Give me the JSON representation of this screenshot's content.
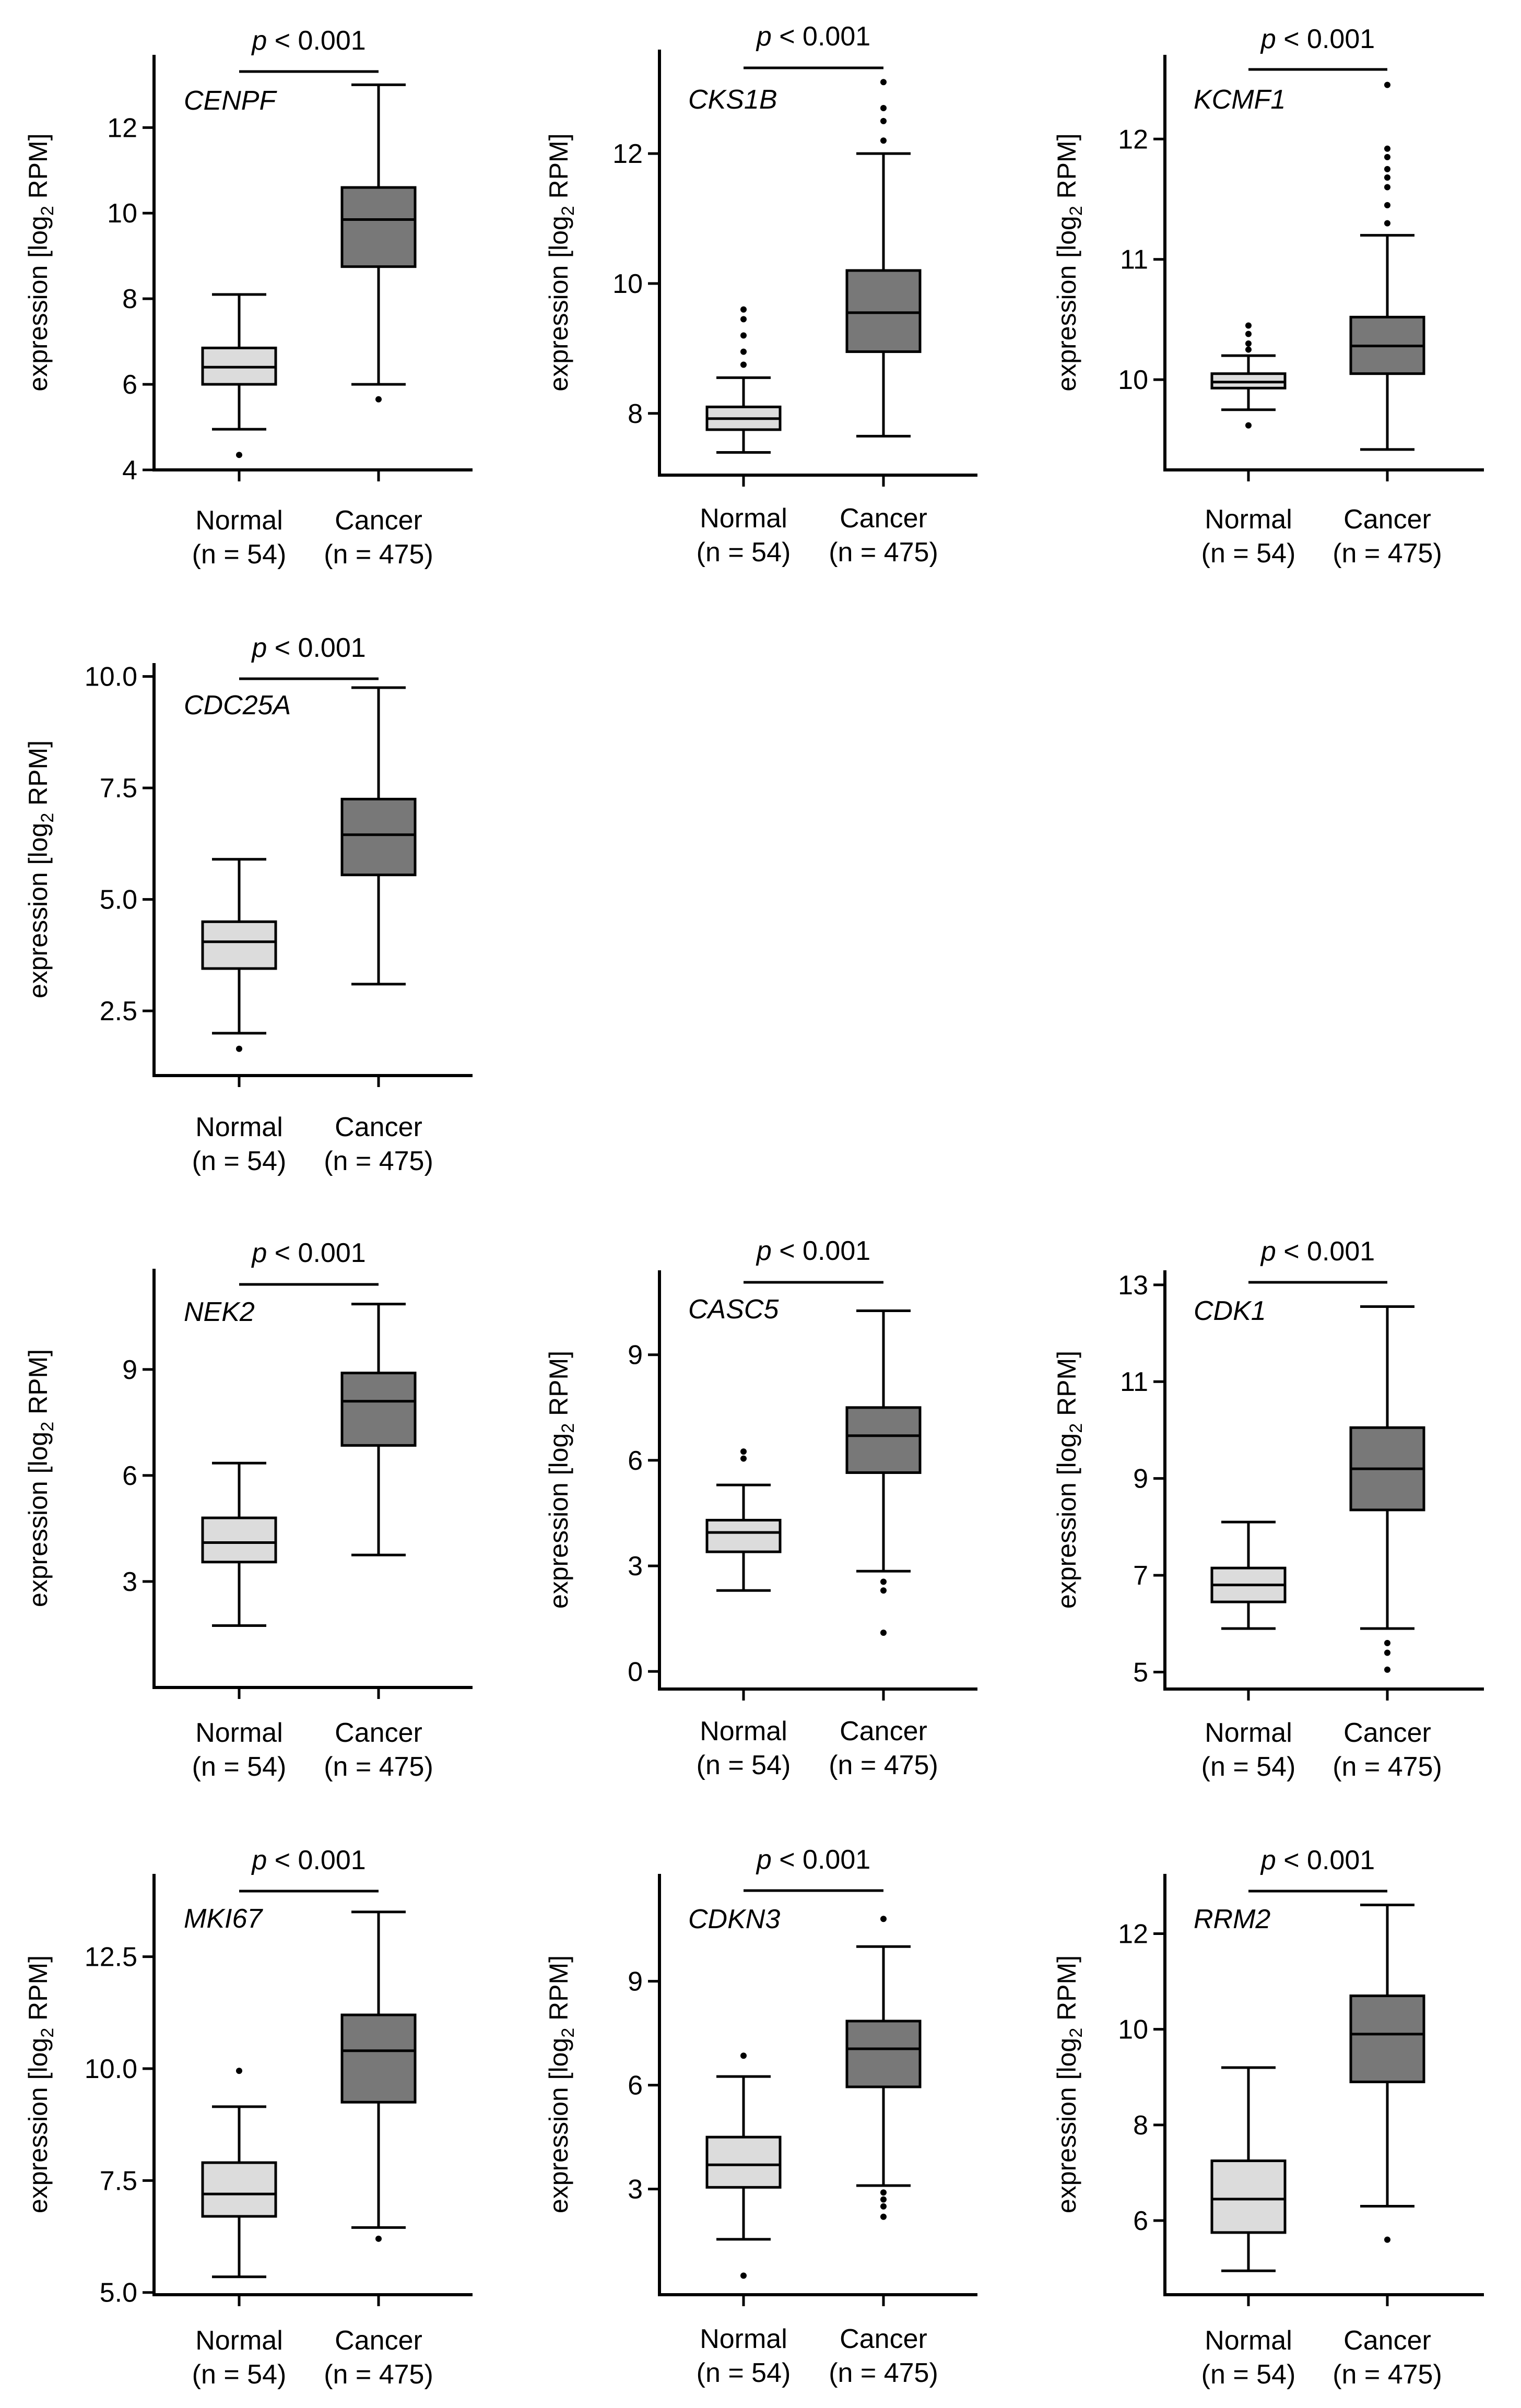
{
  "figure": {
    "ylabel_prefix": "expression [log",
    "ylabel_sub": "2",
    "ylabel_suffix": " RPM]",
    "p_label_italic": "p",
    "p_label_rest": " < 0.001",
    "colors": {
      "normal_box": "#dcdcdc",
      "cancer_box": "#787878",
      "line": "#000000"
    }
  },
  "chart_data": [
    {
      "type": "box",
      "gene": "CENPF",
      "ylim": [
        4,
        13.7
      ],
      "yticks": [
        4,
        6,
        8,
        10,
        12
      ],
      "title": "",
      "xlabel": "",
      "ylabel": "expression [log2 RPM]",
      "categories": [
        "Normal",
        "Cancer"
      ],
      "category_counts": [
        "(n = 54)",
        "(n = 475)"
      ],
      "series": [
        {
          "name": "Normal",
          "q1": 6.0,
          "median": 6.4,
          "q3": 6.85,
          "whisker_low": 4.95,
          "whisker_high": 8.1,
          "outliers": [
            4.35
          ]
        },
        {
          "name": "Cancer",
          "q1": 8.75,
          "median": 9.85,
          "q3": 10.6,
          "whisker_low": 6.0,
          "whisker_high": 13.0,
          "outliers": [
            5.65
          ]
        }
      ]
    },
    {
      "type": "box",
      "gene": "CKS1B",
      "ylim": [
        7.05,
        13.6
      ],
      "yticks": [
        8,
        10,
        12
      ],
      "title": "",
      "xlabel": "",
      "ylabel": "expression [log2 RPM]",
      "categories": [
        "Normal",
        "Cancer"
      ],
      "category_counts": [
        "(n = 54)",
        "(n = 475)"
      ],
      "series": [
        {
          "name": "Normal",
          "q1": 7.75,
          "median": 7.92,
          "q3": 8.1,
          "whisker_low": 7.4,
          "whisker_high": 8.55,
          "outliers": [
            8.75,
            8.95,
            9.2,
            9.45,
            9.6
          ]
        },
        {
          "name": "Cancer",
          "q1": 8.95,
          "median": 9.55,
          "q3": 10.2,
          "whisker_low": 7.65,
          "whisker_high": 12.0,
          "outliers": [
            12.2,
            12.5,
            12.7,
            13.1
          ]
        }
      ]
    },
    {
      "type": "box",
      "gene": "KCMF1",
      "ylim": [
        9.25,
        12.7
      ],
      "yticks": [
        10,
        11,
        12
      ],
      "title": "",
      "xlabel": "",
      "ylabel": "expression [log2 RPM]",
      "categories": [
        "Normal",
        "Cancer"
      ],
      "category_counts": [
        "(n = 54)",
        "(n = 475)"
      ],
      "series": [
        {
          "name": "Normal",
          "q1": 9.93,
          "median": 9.98,
          "q3": 10.05,
          "whisker_low": 9.75,
          "whisker_high": 10.2,
          "outliers": [
            9.62,
            10.25,
            10.3,
            10.38,
            10.45
          ]
        },
        {
          "name": "Cancer",
          "q1": 10.05,
          "median": 10.28,
          "q3": 10.52,
          "whisker_low": 9.42,
          "whisker_high": 11.2,
          "outliers": [
            11.3,
            11.45,
            11.6,
            11.68,
            11.75,
            11.85,
            11.92,
            12.45
          ]
        }
      ]
    },
    {
      "type": "box",
      "gene": "CDC25A",
      "ylim": [
        1.05,
        10.3
      ],
      "yticks": [
        2.5,
        5.0,
        7.5,
        10.0
      ],
      "title": "",
      "xlabel": "",
      "ylabel": "expression [log2 RPM]",
      "categories": [
        "Normal",
        "Cancer"
      ],
      "category_counts": [
        "(n = 54)",
        "(n = 475)"
      ],
      "series": [
        {
          "name": "Normal",
          "q1": 3.45,
          "median": 4.05,
          "q3": 4.5,
          "whisker_low": 2.0,
          "whisker_high": 5.9,
          "outliers": [
            1.65
          ]
        },
        {
          "name": "Cancer",
          "q1": 5.55,
          "median": 6.45,
          "q3": 7.25,
          "whisker_low": 3.1,
          "whisker_high": 9.75,
          "outliers": []
        }
      ]
    },
    {
      "type": "box",
      "gene": "NEK2",
      "ylim": [
        0.0,
        11.85
      ],
      "yticks": [
        3,
        6,
        9
      ],
      "title": "",
      "xlabel": "",
      "ylabel": "expression [log2 RPM]",
      "categories": [
        "Normal",
        "Cancer"
      ],
      "category_counts": [
        "(n = 54)",
        "(n = 475)"
      ],
      "series": [
        {
          "name": "Normal",
          "q1": 3.55,
          "median": 4.1,
          "q3": 4.8,
          "whisker_low": 1.75,
          "whisker_high": 6.35,
          "outliers": []
        },
        {
          "name": "Cancer",
          "q1": 6.85,
          "median": 8.1,
          "q3": 8.9,
          "whisker_low": 3.75,
          "whisker_high": 10.85,
          "outliers": []
        }
      ]
    },
    {
      "type": "box",
      "gene": "CASC5",
      "ylim": [
        -0.5,
        11.4
      ],
      "yticks": [
        0,
        3,
        6,
        9
      ],
      "title": "",
      "xlabel": "",
      "ylabel": "expression [log2 RPM]",
      "categories": [
        "Normal",
        "Cancer"
      ],
      "category_counts": [
        "(n = 54)",
        "(n = 475)"
      ],
      "series": [
        {
          "name": "Normal",
          "q1": 3.4,
          "median": 3.95,
          "q3": 4.3,
          "whisker_low": 2.3,
          "whisker_high": 5.3,
          "outliers": [
            6.05,
            6.25
          ]
        },
        {
          "name": "Cancer",
          "q1": 5.65,
          "median": 6.7,
          "q3": 7.5,
          "whisker_low": 2.85,
          "whisker_high": 10.25,
          "outliers": [
            2.55,
            2.3,
            1.1
          ]
        }
      ]
    },
    {
      "type": "box",
      "gene": "CDK1",
      "ylim": [
        4.65,
        13.3
      ],
      "yticks": [
        5,
        7,
        9,
        11,
        13
      ],
      "title": "",
      "xlabel": "",
      "ylabel": "expression [log2 RPM]",
      "categories": [
        "Normal",
        "Cancer"
      ],
      "category_counts": [
        "(n = 54)",
        "(n = 475)"
      ],
      "series": [
        {
          "name": "Normal",
          "q1": 6.45,
          "median": 6.8,
          "q3": 7.15,
          "whisker_low": 5.9,
          "whisker_high": 8.1,
          "outliers": []
        },
        {
          "name": "Cancer",
          "q1": 8.35,
          "median": 9.2,
          "q3": 10.05,
          "whisker_low": 5.9,
          "whisker_high": 12.55,
          "outliers": [
            5.6,
            5.4,
            5.05
          ]
        }
      ]
    },
    {
      "type": "box",
      "gene": "MKI67",
      "ylim": [
        4.95,
        14.35
      ],
      "yticks": [
        5.0,
        7.5,
        10.0,
        12.5
      ],
      "title": "",
      "xlabel": "",
      "ylabel": "expression [log2 RPM]",
      "categories": [
        "Normal",
        "Cancer"
      ],
      "category_counts": [
        "(n = 54)",
        "(n = 475)"
      ],
      "series": [
        {
          "name": "Normal",
          "q1": 6.7,
          "median": 7.2,
          "q3": 7.9,
          "whisker_low": 5.35,
          "whisker_high": 9.15,
          "outliers": [
            9.95
          ]
        },
        {
          "name": "Cancer",
          "q1": 9.25,
          "median": 10.4,
          "q3": 11.2,
          "whisker_low": 6.45,
          "whisker_high": 13.5,
          "outliers": [
            6.2
          ]
        }
      ]
    },
    {
      "type": "box",
      "gene": "CDKN3",
      "ylim": [
        -0.05,
        12.1
      ],
      "yticks": [
        3,
        6,
        9
      ],
      "title": "",
      "xlabel": "",
      "ylabel": "expression [log2 RPM]",
      "categories": [
        "Normal",
        "Cancer"
      ],
      "category_counts": [
        "(n = 54)",
        "(n = 475)"
      ],
      "series": [
        {
          "name": "Normal",
          "q1": 3.05,
          "median": 3.7,
          "q3": 4.5,
          "whisker_low": 1.55,
          "whisker_high": 6.25,
          "outliers": [
            6.85,
            0.5
          ]
        },
        {
          "name": "Cancer",
          "q1": 5.95,
          "median": 7.05,
          "q3": 7.85,
          "whisker_low": 3.1,
          "whisker_high": 10.0,
          "outliers": [
            10.8,
            2.9,
            2.7,
            2.5,
            2.2
          ]
        }
      ]
    },
    {
      "type": "box",
      "gene": "RRM2",
      "ylim": [
        4.45,
        13.25
      ],
      "yticks": [
        6,
        8,
        10,
        12
      ],
      "title": "",
      "xlabel": "",
      "ylabel": "expression [log2 RPM]",
      "categories": [
        "Normal",
        "Cancer"
      ],
      "category_counts": [
        "(n = 54)",
        "(n = 475)"
      ],
      "series": [
        {
          "name": "Normal",
          "q1": 5.75,
          "median": 6.45,
          "q3": 7.25,
          "whisker_low": 4.95,
          "whisker_high": 9.2,
          "outliers": []
        },
        {
          "name": "Cancer",
          "q1": 8.9,
          "median": 9.9,
          "q3": 10.7,
          "whisker_low": 6.3,
          "whisker_high": 12.6,
          "outliers": [
            5.6
          ]
        }
      ]
    }
  ]
}
